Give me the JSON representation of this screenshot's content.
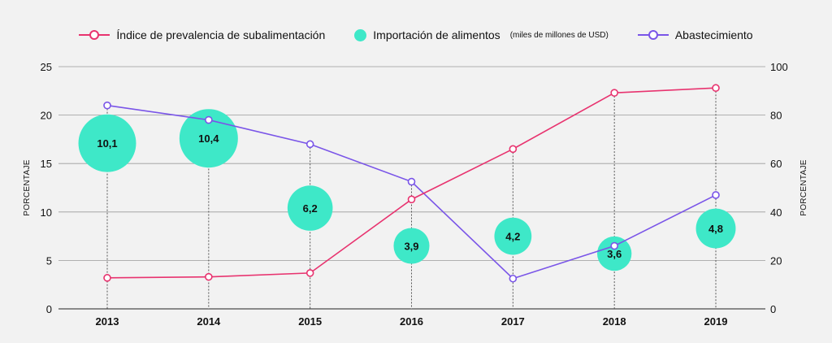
{
  "colors": {
    "prevalence": "#e8336f",
    "imports": "#3ee8c8",
    "supply": "#7a55e8",
    "grid": "#9a9a9a",
    "background": "#f2f2f2"
  },
  "chart_data": {
    "type": "line",
    "title": "",
    "categories": [
      "2013",
      "2014",
      "2015",
      "2016",
      "2017",
      "2018",
      "2019"
    ],
    "y_left": {
      "label": "PORCENTAJE",
      "range": [
        0,
        25
      ],
      "ticks": [
        "0",
        "5",
        "10",
        "15",
        "20",
        "25"
      ]
    },
    "y_right": {
      "label": "PORCENTAJE",
      "range": [
        0,
        100
      ],
      "ticks": [
        "0",
        "20",
        "40",
        "60",
        "80",
        "100"
      ]
    },
    "grid": true,
    "legend_position": "top-center",
    "series": [
      {
        "name": "Índice de prevalencia de subalimentación",
        "type": "line",
        "axis": "left",
        "values": [
          3.2,
          3.3,
          3.7,
          11.3,
          16.5,
          22.3,
          22.8
        ]
      },
      {
        "name": "Importación de alimentos",
        "name_note": "(miles de millones de USD)",
        "type": "bubble",
        "axis": "left",
        "positions": [
          17.1,
          17.6,
          10.4,
          6.5,
          7.5,
          5.7,
          8.3
        ],
        "sizes": [
          10.1,
          10.4,
          6.2,
          3.9,
          4.2,
          3.6,
          4.8
        ],
        "labels": [
          "10,1",
          "10,4",
          "6,2",
          "3,9",
          "4,2",
          "3,6",
          "4,8"
        ]
      },
      {
        "name": "Abastecimiento",
        "type": "line",
        "axis": "right",
        "values": [
          84,
          78,
          68,
          52.5,
          12.5,
          26,
          47
        ]
      }
    ]
  }
}
